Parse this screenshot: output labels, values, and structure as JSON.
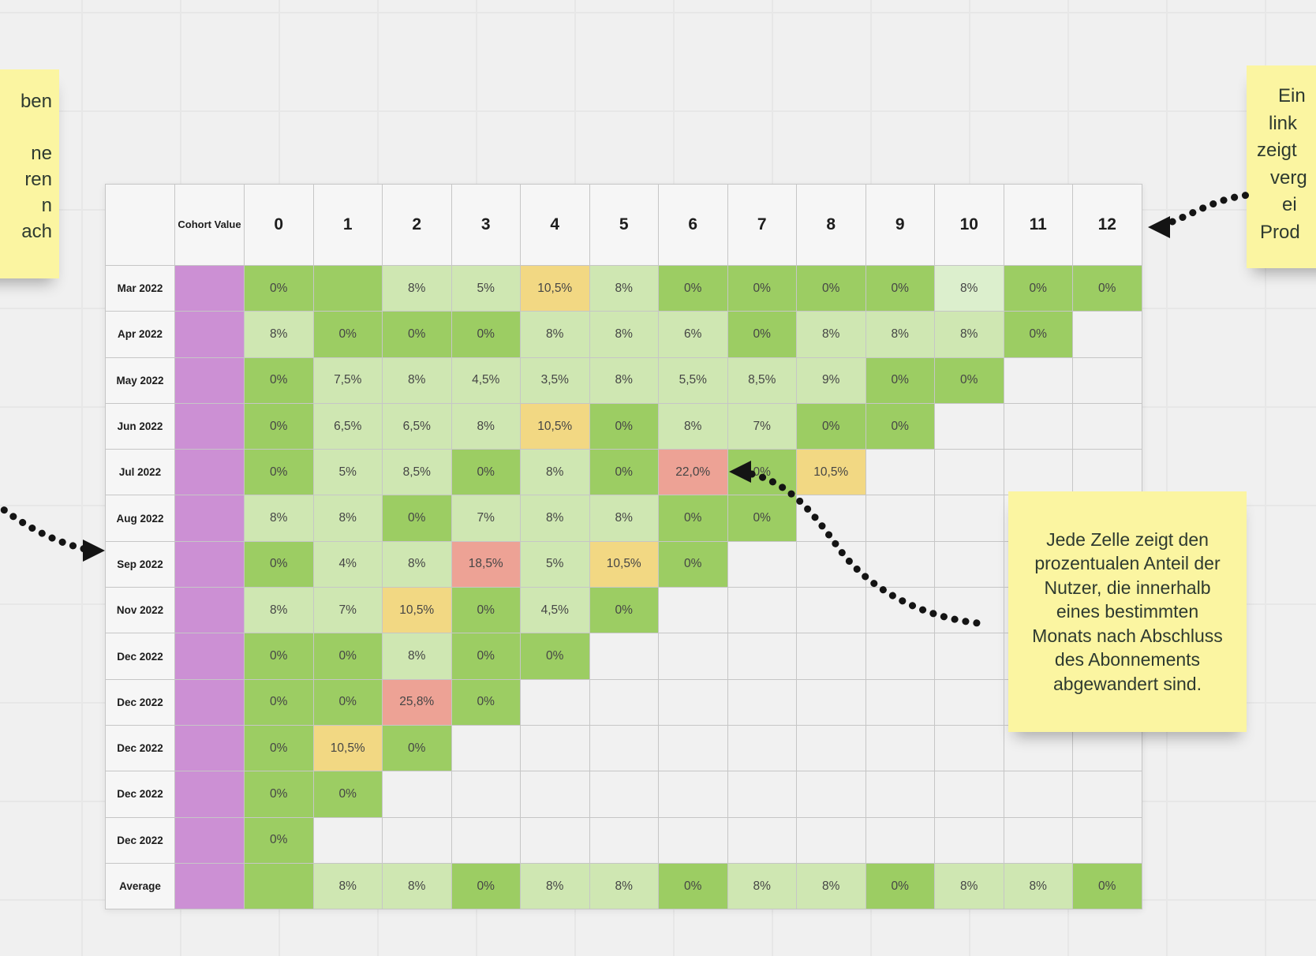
{
  "app": {
    "background_color": "#f0f0f0",
    "grid_color": "#e7e7e7"
  },
  "chart_data": {
    "type": "heatmap",
    "corner_label": "",
    "value_column_header": "Cohort Value",
    "columns": [
      "0",
      "1",
      "2",
      "3",
      "4",
      "5",
      "6",
      "7",
      "8",
      "9",
      "10",
      "11",
      "12"
    ],
    "rows": [
      {
        "label": "Mar 2022",
        "cells": [
          {
            "v": "0%",
            "c": "g"
          },
          {
            "v": "",
            "c": "g"
          },
          {
            "v": "8%",
            "c": "l"
          },
          {
            "v": "5%",
            "c": "l"
          },
          {
            "v": "10,5%",
            "c": "y"
          },
          {
            "v": "8%",
            "c": "l"
          },
          {
            "v": "0%",
            "c": "g"
          },
          {
            "v": "0%",
            "c": "g"
          },
          {
            "v": "0%",
            "c": "g"
          },
          {
            "v": "0%",
            "c": "g"
          },
          {
            "v": "8%",
            "c": "xl"
          },
          {
            "v": "0%",
            "c": "g"
          },
          {
            "v": "0%",
            "c": "g"
          }
        ]
      },
      {
        "label": "Apr 2022",
        "cells": [
          {
            "v": "8%",
            "c": "l"
          },
          {
            "v": "0%",
            "c": "g"
          },
          {
            "v": "0%",
            "c": "g"
          },
          {
            "v": "0%",
            "c": "g"
          },
          {
            "v": "8%",
            "c": "l"
          },
          {
            "v": "8%",
            "c": "l"
          },
          {
            "v": "6%",
            "c": "l"
          },
          {
            "v": "0%",
            "c": "g"
          },
          {
            "v": "8%",
            "c": "l"
          },
          {
            "v": "8%",
            "c": "l"
          },
          {
            "v": "8%",
            "c": "l"
          },
          {
            "v": "0%",
            "c": "g"
          }
        ]
      },
      {
        "label": "May 2022",
        "cells": [
          {
            "v": "0%",
            "c": "g"
          },
          {
            "v": "7,5%",
            "c": "l"
          },
          {
            "v": "8%",
            "c": "l"
          },
          {
            "v": "4,5%",
            "c": "l"
          },
          {
            "v": "3,5%",
            "c": "l"
          },
          {
            "v": "8%",
            "c": "l"
          },
          {
            "v": "5,5%",
            "c": "l"
          },
          {
            "v": "8,5%",
            "c": "l"
          },
          {
            "v": "9%",
            "c": "l"
          },
          {
            "v": "0%",
            "c": "g"
          },
          {
            "v": "0%",
            "c": "g"
          }
        ]
      },
      {
        "label": "Jun 2022",
        "cells": [
          {
            "v": "0%",
            "c": "g"
          },
          {
            "v": "6,5%",
            "c": "l"
          },
          {
            "v": "6,5%",
            "c": "l"
          },
          {
            "v": "8%",
            "c": "l"
          },
          {
            "v": "10,5%",
            "c": "y"
          },
          {
            "v": "0%",
            "c": "g"
          },
          {
            "v": "8%",
            "c": "l"
          },
          {
            "v": "7%",
            "c": "l"
          },
          {
            "v": "0%",
            "c": "g"
          },
          {
            "v": "0%",
            "c": "g"
          }
        ]
      },
      {
        "label": "Jul 2022",
        "cells": [
          {
            "v": "0%",
            "c": "g"
          },
          {
            "v": "5%",
            "c": "l"
          },
          {
            "v": "8,5%",
            "c": "l"
          },
          {
            "v": "0%",
            "c": "g"
          },
          {
            "v": "8%",
            "c": "l"
          },
          {
            "v": "0%",
            "c": "g"
          },
          {
            "v": "22,0%",
            "c": "r"
          },
          {
            "v": "0%",
            "c": "g"
          },
          {
            "v": "10,5%",
            "c": "y"
          }
        ]
      },
      {
        "label": "Aug 2022",
        "cells": [
          {
            "v": "8%",
            "c": "l"
          },
          {
            "v": "8%",
            "c": "l"
          },
          {
            "v": "0%",
            "c": "g"
          },
          {
            "v": "7%",
            "c": "l"
          },
          {
            "v": "8%",
            "c": "l"
          },
          {
            "v": "8%",
            "c": "l"
          },
          {
            "v": "0%",
            "c": "g"
          },
          {
            "v": "0%",
            "c": "g"
          }
        ]
      },
      {
        "label": "Sep 2022",
        "cells": [
          {
            "v": "0%",
            "c": "g"
          },
          {
            "v": "4%",
            "c": "l"
          },
          {
            "v": "8%",
            "c": "l"
          },
          {
            "v": "18,5%",
            "c": "r"
          },
          {
            "v": "5%",
            "c": "l"
          },
          {
            "v": "10,5%",
            "c": "y"
          },
          {
            "v": "0%",
            "c": "g"
          }
        ]
      },
      {
        "label": "Nov 2022",
        "cells": [
          {
            "v": "8%",
            "c": "l"
          },
          {
            "v": "7%",
            "c": "l"
          },
          {
            "v": "10,5%",
            "c": "y"
          },
          {
            "v": "0%",
            "c": "g"
          },
          {
            "v": "4,5%",
            "c": "l"
          },
          {
            "v": "0%",
            "c": "g"
          }
        ]
      },
      {
        "label": "Dec 2022",
        "cells": [
          {
            "v": "0%",
            "c": "g"
          },
          {
            "v": "0%",
            "c": "g"
          },
          {
            "v": "8%",
            "c": "l"
          },
          {
            "v": "0%",
            "c": "g"
          },
          {
            "v": "0%",
            "c": "g"
          }
        ]
      },
      {
        "label": "Dec 2022",
        "cells": [
          {
            "v": "0%",
            "c": "g"
          },
          {
            "v": "0%",
            "c": "g"
          },
          {
            "v": "25,8%",
            "c": "r"
          },
          {
            "v": "0%",
            "c": "g"
          }
        ]
      },
      {
        "label": "Dec 2022",
        "cells": [
          {
            "v": "0%",
            "c": "g"
          },
          {
            "v": "10,5%",
            "c": "y"
          },
          {
            "v": "0%",
            "c": "g"
          }
        ]
      },
      {
        "label": "Dec 2022",
        "cells": [
          {
            "v": "0%",
            "c": "g"
          },
          {
            "v": "0%",
            "c": "g"
          }
        ]
      },
      {
        "label": "Dec 2022",
        "cells": [
          {
            "v": "0%",
            "c": "g"
          }
        ]
      },
      {
        "label": "Average",
        "cells": [
          {
            "v": "",
            "c": "g"
          },
          {
            "v": "8%",
            "c": "l"
          },
          {
            "v": "8%",
            "c": "l"
          },
          {
            "v": "0%",
            "c": "g"
          },
          {
            "v": "8%",
            "c": "l"
          },
          {
            "v": "8%",
            "c": "l"
          },
          {
            "v": "0%",
            "c": "g"
          },
          {
            "v": "8%",
            "c": "l"
          },
          {
            "v": "8%",
            "c": "l"
          },
          {
            "v": "0%",
            "c": "g"
          },
          {
            "v": "8%",
            "c": "l"
          },
          {
            "v": "8%",
            "c": "l"
          },
          {
            "v": "0%",
            "c": "g"
          }
        ]
      }
    ],
    "cell_colors": {
      "g": "#9ccd63",
      "l": "#cfe7b2",
      "xl": "#dcefcd",
      "y": "#f2d883",
      "r": "#eda295",
      "purple": "#cc90d4",
      "empty": "#f1f1f1"
    }
  },
  "notes": {
    "note_color": "#fbf5a1",
    "left_partial": {
      "lines": [
        "ben",
        "",
        "ne",
        "ren",
        "n",
        "ach"
      ]
    },
    "top_right_partial": {
      "lines": [
        "Ein",
        "link",
        "zeigt",
        "verg",
        "ei",
        "Prod"
      ]
    },
    "cell_explainer": {
      "lines": [
        "Jede Zelle zeigt den",
        "prozentualen Anteil der",
        "Nutzer, die innerhalb",
        "eines bestimmten",
        "Monats nach Abschluss",
        "des Abonnements",
        "abgewandert sind."
      ]
    }
  },
  "arrows": {
    "color": "#141414"
  }
}
